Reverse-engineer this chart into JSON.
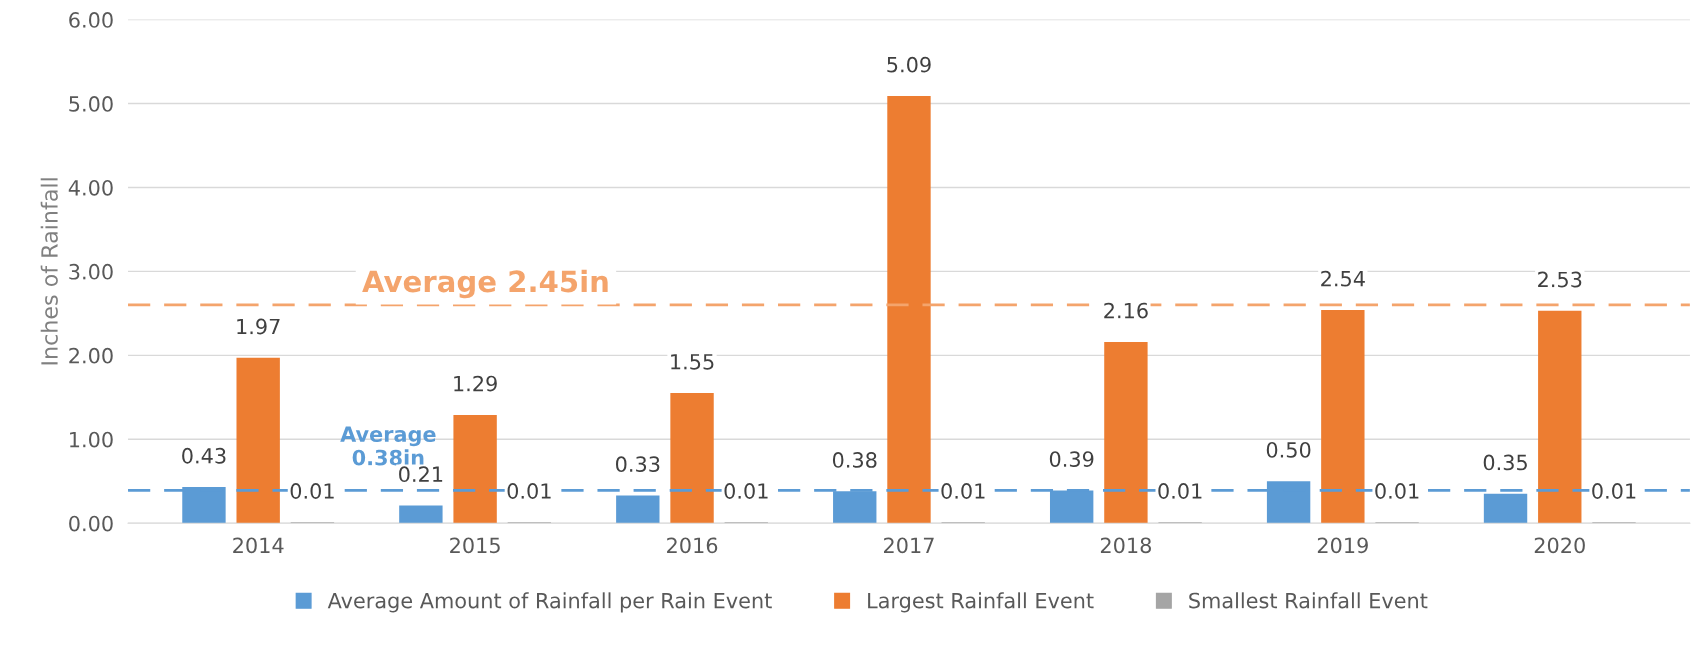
{
  "chart_data": {
    "type": "bar",
    "categories": [
      "2014",
      "2015",
      "2016",
      "2017",
      "2018",
      "2019",
      "2020"
    ],
    "ylabel": "Inches of Rainfall",
    "ylim": [
      0,
      6
    ],
    "yticks": [
      {
        "value": 0,
        "label": "0.00"
      },
      {
        "value": 1,
        "label": "1.00"
      },
      {
        "value": 2,
        "label": "2.00"
      },
      {
        "value": 3,
        "label": "3.00"
      },
      {
        "value": 4,
        "label": "4.00"
      },
      {
        "value": 5,
        "label": "5.00"
      },
      {
        "value": 6,
        "label": "6.00"
      }
    ],
    "grid": "y",
    "legend": "bottom",
    "series": [
      {
        "name": "Average Amount of Rainfall per Rain Event",
        "color": "#5b9bd5",
        "values": [
          0.43,
          0.21,
          0.33,
          0.38,
          0.39,
          0.5,
          0.35
        ],
        "value_labels": [
          "0.43",
          "0.21",
          "0.33",
          "0.38",
          "0.39",
          "0.50",
          "0.35"
        ]
      },
      {
        "name": "Largest Rainfall Event",
        "color": "#ed7d31",
        "values": [
          1.97,
          1.29,
          1.55,
          5.09,
          2.16,
          2.54,
          2.53
        ],
        "value_labels": [
          "1.97",
          "1.29",
          "1.55",
          "5.09",
          "2.16",
          "2.54",
          "2.53"
        ]
      },
      {
        "name": "Smallest Rainfall Event",
        "color": "#a5a5a5",
        "values": [
          0.01,
          0.01,
          0.01,
          0.01,
          0.01,
          0.01,
          0.01
        ],
        "value_labels": [
          "0.01",
          "0.01",
          "0.01",
          "0.01",
          "0.01",
          "0.01",
          "0.01"
        ]
      }
    ],
    "ref_lines": [
      {
        "axis": "y",
        "value": 2.6,
        "label": "Average 2.45in",
        "color": "#f4a46c",
        "line_style": "dashed"
      },
      {
        "axis": "y",
        "value": 0.39,
        "label": "Average\n0.38in",
        "color": "#5b9bd5",
        "line_style": "dashed"
      }
    ]
  }
}
